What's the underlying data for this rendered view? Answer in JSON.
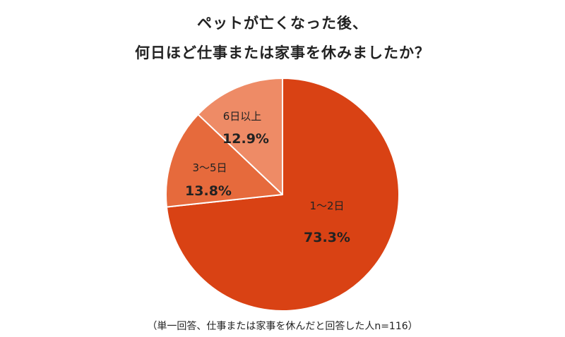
{
  "chart_data": {
    "type": "pie",
    "title": [
      "ペットが亡くなった後、",
      "何日ほど仕事または家事を休みましたか？"
    ],
    "slices": [
      {
        "label": "1～2日",
        "value": 73.3,
        "value_label": "73.3%",
        "color": "#D94214"
      },
      {
        "label": "3～5日",
        "value": 13.8,
        "value_label": "13.8%",
        "color": "#E66A3C"
      },
      {
        "label": "6日以上",
        "value": 12.9,
        "value_label": "12.9%",
        "color": "#EE8B66"
      }
    ],
    "start_angle_deg": 0,
    "direction": "clockwise",
    "slice_border_color": "#ffffff",
    "note": "（単一回答、仕事または家事を休んだと回答した人n=116）"
  }
}
